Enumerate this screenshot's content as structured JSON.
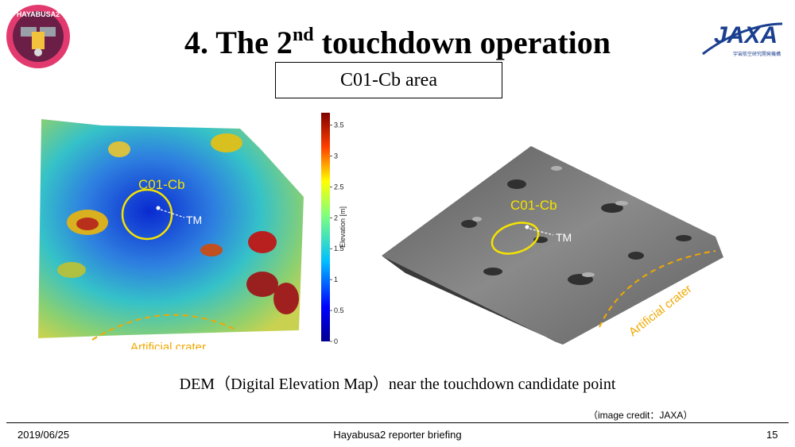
{
  "header": {
    "title_main": "4. The 2",
    "title_sup": "nd",
    "title_rest": " touchdown operation",
    "mission_logo_text": "HAYABUSA2",
    "agency_logo_text": "JAXA",
    "agency_logo_subtext": "宇宙航空研究開発機構"
  },
  "area_label": "C01-Cb area",
  "dem_map": {
    "target_label": "C01-Cb",
    "marker_label": "TM",
    "crater_label": "Artificial crater",
    "colorbar": {
      "label": "Elevation [m]",
      "ticks": [
        "0",
        "0.5",
        "1",
        "1.5",
        "2",
        "2.5",
        "3",
        "3.5"
      ]
    }
  },
  "terrain_view": {
    "target_label": "C01-Cb",
    "marker_label": "TM",
    "crater_label": "Artificial crater"
  },
  "caption": "DEM（Digital Elevation Map）near the touchdown candidate point",
  "credit": "（image credit：JAXA）",
  "footer": {
    "date": "2019/06/25",
    "center": "Hayabusa2 reporter briefing",
    "page": "15"
  },
  "colors": {
    "annotation_yellow": "#f5e300",
    "crater_orange": "#f0a800",
    "colorbar_low": "#00008f",
    "colorbar_high": "#800000"
  }
}
